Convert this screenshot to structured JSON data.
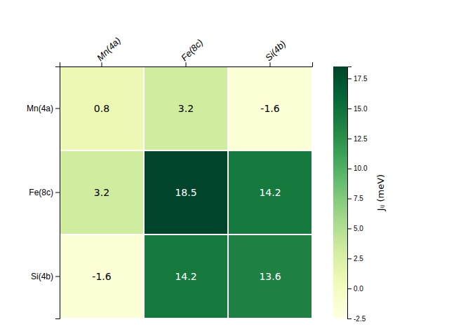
{
  "chart_data": {
    "type": "heatmap",
    "x": [
      "Mn(4a)",
      "Fe(8c)",
      "Si(4b)"
    ],
    "y": [
      "Mn(4a)",
      "Fe(8c)",
      "Si(4b)"
    ],
    "values": [
      [
        0.8,
        3.2,
        -1.6
      ],
      [
        3.2,
        18.5,
        14.2
      ],
      [
        -1.6,
        14.2,
        13.6
      ]
    ],
    "color": "YlGn",
    "colorbar_label": "Jᵢⱼ (meV)",
    "color_range": [
      -2.5,
      18.5
    ],
    "color_ticks": [
      -2.5,
      {
        "value": 0.0,
        "label": "0.0"
      },
      2.5,
      {
        "value": 5.0,
        "label": "5.0"
      },
      7.5,
      {
        "value": 10.0,
        "label": "10.0"
      },
      12.5,
      {
        "value": 15.0,
        "label": "15.0"
      },
      17.5
    ],
    "data_labels": true
  }
}
